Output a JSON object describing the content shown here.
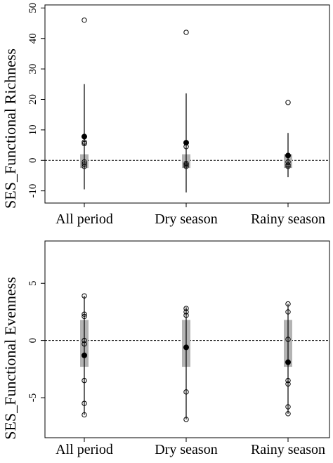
{
  "chart_data": [
    {
      "type": "box",
      "ylabel": "SES_Functional Richness",
      "xlabel": "",
      "title": "",
      "categories": [
        "All period",
        "Dry season",
        "Rainy season"
      ],
      "ylim": [
        -14,
        51
      ],
      "yticks": [
        -10,
        0,
        10,
        20,
        30,
        40,
        50
      ],
      "reference_line": 0,
      "null_band": [
        {
          "low": -2.5,
          "high": 2
        },
        {
          "low": -2.5,
          "high": 2
        },
        {
          "low": -2.5,
          "high": 2
        }
      ],
      "whiskers": [
        {
          "low": -9.5,
          "high": 25
        },
        {
          "low": -10.5,
          "high": 22
        },
        {
          "low": -5.5,
          "high": 9
        }
      ],
      "means": [
        7.8,
        5.8,
        1.6
      ],
      "observations": [
        [
          46,
          6,
          5.5,
          -0.5,
          -1.2,
          -2
        ],
        [
          42,
          4.5,
          -1,
          -1.5,
          -2
        ],
        [
          19,
          -0.5,
          -1.5,
          -2
        ]
      ],
      "colors": {
        "band": "#b3b3b3",
        "mean": "#000000",
        "point": "#000000"
      }
    },
    {
      "type": "box",
      "ylabel": "SES_Functional Evenness",
      "xlabel": "",
      "title": "",
      "categories": [
        "All period",
        "Dry season",
        "Rainy season"
      ],
      "ylim": [
        -8.5,
        8.7
      ],
      "yticks": [
        -5,
        0,
        5
      ],
      "reference_line": 0,
      "null_band": [
        {
          "low": -2.3,
          "high": 1.8
        },
        {
          "low": -2.3,
          "high": 1.8
        },
        {
          "low": -2.3,
          "high": 1.8
        }
      ],
      "whiskers": [
        {
          "low": -6.5,
          "high": 3.9
        },
        {
          "low": -6.9,
          "high": 2.9
        },
        {
          "low": -6.4,
          "high": 3.2
        }
      ],
      "means": [
        -1.3,
        -0.6,
        -1.9
      ],
      "observations": [
        [
          3.9,
          2.3,
          2.1,
          0,
          -0.3,
          -3.5,
          -5.5,
          -6.5
        ],
        [
          2.8,
          2.5,
          2.2,
          -4.5,
          -6.9
        ],
        [
          3.2,
          2.5,
          0.1,
          -3.5,
          -3.8,
          -5.8,
          -6.4
        ]
      ],
      "colors": {
        "band": "#b3b3b3",
        "mean": "#000000",
        "point": "#000000"
      }
    }
  ]
}
